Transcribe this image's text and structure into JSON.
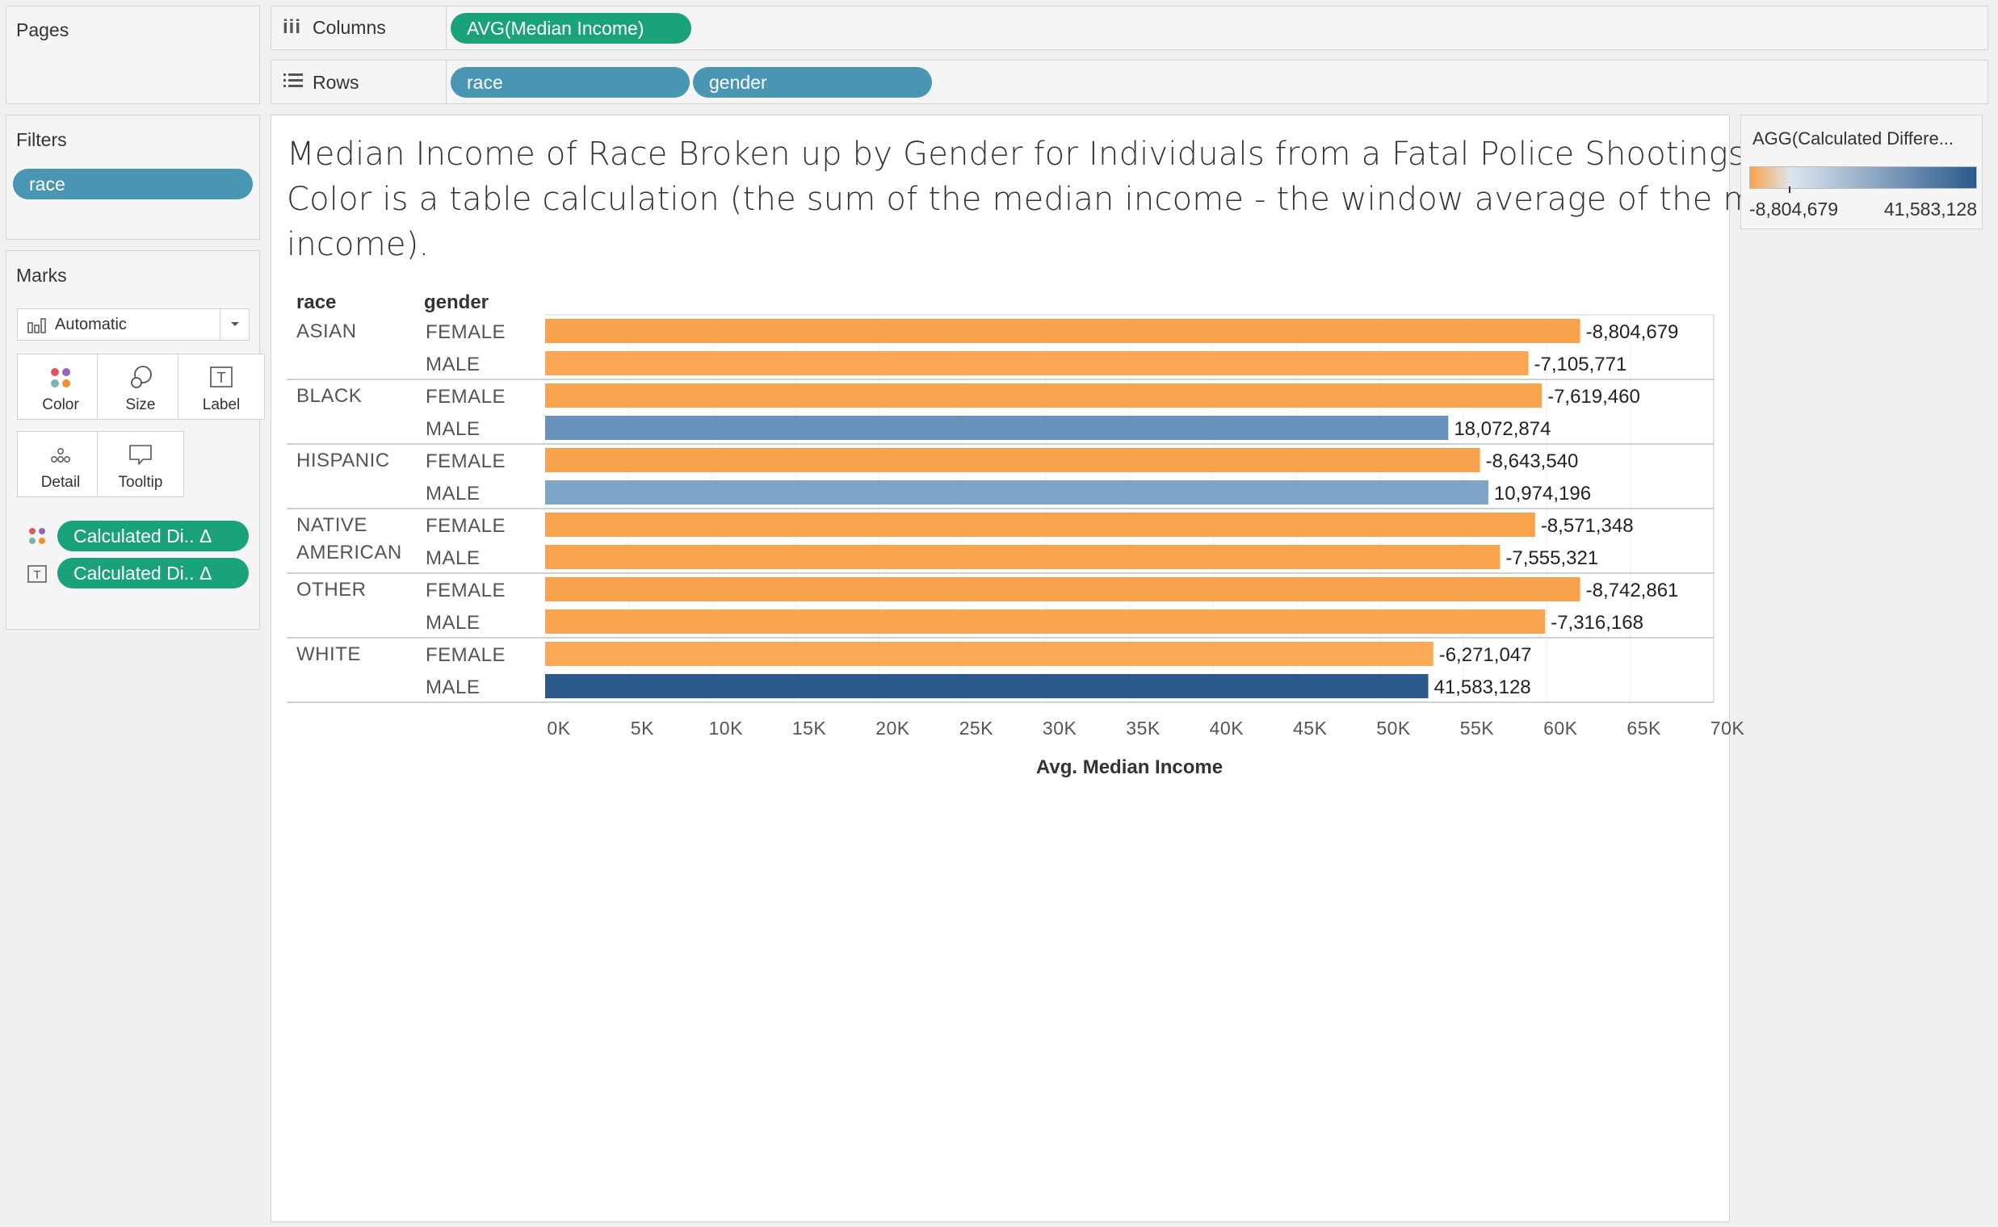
{
  "pages": {
    "title": "Pages"
  },
  "columns": {
    "label": "Columns",
    "pill": "AVG(Median Income)"
  },
  "rows": {
    "label": "Rows",
    "pills": [
      "race",
      "gender"
    ]
  },
  "filters": {
    "title": "Filters",
    "pill": "race"
  },
  "marks": {
    "title": "Marks",
    "type": "Automatic",
    "buttons": [
      "Color",
      "Size",
      "Label",
      "Detail",
      "Tooltip"
    ],
    "fields": [
      "Calculated Di.. Δ",
      "Calculated Di.. Δ"
    ]
  },
  "legend": {
    "title": "AGG(Calculated Differe...",
    "min_label": "-8,804,679",
    "max_label": "41,583,128",
    "colors": [
      "#f9a24b",
      "#dde6ef",
      "#2a5a8c"
    ]
  },
  "title_lines": [
    "Median Income of Race Broken up by Gender for Individuals from a Fatal Police Shootings.",
    "Color is a table calculation (the sum of the median income - the window average of the median",
    "income)."
  ],
  "chart_data": {
    "type": "bar",
    "orientation": "horizontal",
    "xlabel": "Avg. Median Income",
    "xlim": [
      0,
      70000
    ],
    "xticks": [
      0,
      5000,
      10000,
      15000,
      20000,
      25000,
      30000,
      35000,
      40000,
      45000,
      50000,
      55000,
      60000,
      65000,
      70000
    ],
    "xtick_labels": [
      "0K",
      "5K",
      "10K",
      "15K",
      "20K",
      "25K",
      "30K",
      "35K",
      "40K",
      "45K",
      "50K",
      "55K",
      "60K",
      "65K",
      "70K"
    ],
    "row_headers": [
      "race",
      "gender"
    ],
    "groups": [
      {
        "race": [
          "ASIAN"
        ],
        "rows": [
          {
            "gender": "FEMALE",
            "value": 62000,
            "label": "-8,804,679",
            "color_value": -8804679
          },
          {
            "gender": "MALE",
            "value": 58900,
            "label": "-7,105,771",
            "color_value": -7105771
          }
        ]
      },
      {
        "race": [
          "BLACK"
        ],
        "rows": [
          {
            "gender": "FEMALE",
            "value": 59700,
            "label": "-7,619,460",
            "color_value": -7619460
          },
          {
            "gender": "MALE",
            "value": 54100,
            "label": "18,072,874",
            "color_value": 18072874
          }
        ]
      },
      {
        "race": [
          "HISPANIC"
        ],
        "rows": [
          {
            "gender": "FEMALE",
            "value": 56000,
            "label": "-8,643,540",
            "color_value": -8643540
          },
          {
            "gender": "MALE",
            "value": 56500,
            "label": "10,974,196",
            "color_value": 10974196
          }
        ]
      },
      {
        "race": [
          "NATIVE",
          "AMERICAN"
        ],
        "rows": [
          {
            "gender": "FEMALE",
            "value": 59300,
            "label": "-8,571,348",
            "color_value": -8571348
          },
          {
            "gender": "MALE",
            "value": 57200,
            "label": "-7,555,321",
            "color_value": -7555321
          }
        ]
      },
      {
        "race": [
          "OTHER"
        ],
        "rows": [
          {
            "gender": "FEMALE",
            "value": 62000,
            "label": "-8,742,861",
            "color_value": -8742861
          },
          {
            "gender": "MALE",
            "value": 59900,
            "label": "-7,316,168",
            "color_value": -7316168
          }
        ]
      },
      {
        "race": [
          "WHITE"
        ],
        "rows": [
          {
            "gender": "FEMALE",
            "value": 53200,
            "label": "-6,271,047",
            "color_value": -6271047
          },
          {
            "gender": "MALE",
            "value": 52900,
            "label": "41,583,128",
            "color_value": 41583128
          }
        ]
      }
    ]
  }
}
